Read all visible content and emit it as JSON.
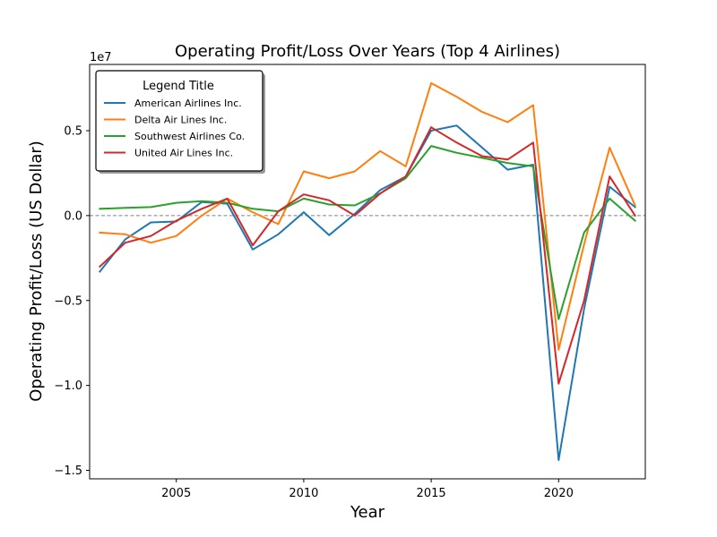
{
  "chart_data": {
    "type": "line",
    "title": "Operating Profit/Loss Over Years (Top 4 Airlines)",
    "xlabel": "Year",
    "ylabel": "Operating Profit/Loss (US Dollar)",
    "y_offset_label": "1e7",
    "xlim": [
      2001.6,
      2023.4
    ],
    "ylim": [
      -15500000,
      8900000
    ],
    "x_ticks": [
      2005,
      2010,
      2015,
      2020
    ],
    "x_tick_labels": [
      "2005",
      "2010",
      "2015",
      "2020"
    ],
    "y_ticks": [
      -15000000,
      -10000000,
      -5000000,
      0,
      5000000
    ],
    "y_tick_labels": [
      "−1.5",
      "−1.0",
      "−0.5",
      "0.0",
      "0.5"
    ],
    "zero_line": true,
    "grid": false,
    "legend": {
      "title": "Legend Title",
      "placement": "upper-left"
    },
    "x": [
      2002,
      2003,
      2004,
      2005,
      2006,
      2007,
      2008,
      2009,
      2010,
      2011,
      2012,
      2013,
      2014,
      2015,
      2016,
      2017,
      2018,
      2019,
      2020,
      2021,
      2022,
      2023
    ],
    "series": [
      {
        "name": "American Airlines Inc.",
        "color": "#1f77b4",
        "values": [
          -3300000,
          -1400000,
          -400000,
          -350000,
          800000,
          700000,
          -2000000,
          -1100000,
          200000,
          -1150000,
          100000,
          1500000,
          2300000,
          5000000,
          5300000,
          4000000,
          2700000,
          3000000,
          -14400000,
          -5500000,
          1700000,
          500000
        ]
      },
      {
        "name": "Delta Air Lines Inc.",
        "color": "#ff7f0e",
        "values": [
          -1000000,
          -1100000,
          -1600000,
          -1200000,
          0,
          1000000,
          200000,
          -500000,
          2600000,
          2200000,
          2600000,
          3800000,
          2900000,
          7800000,
          7000000,
          6100000,
          5500000,
          6500000,
          -7900000,
          -1700000,
          4000000,
          600000
        ]
      },
      {
        "name": "Southwest Airlines Co.",
        "color": "#2ca02c",
        "values": [
          400000,
          450000,
          500000,
          750000,
          850000,
          750000,
          400000,
          250000,
          1000000,
          650000,
          600000,
          1300000,
          2200000,
          4100000,
          3700000,
          3400000,
          3100000,
          2900000,
          -6100000,
          -1000000,
          1000000,
          -300000
        ]
      },
      {
        "name": "United Air Lines Inc.",
        "color": "#d62728",
        "values": [
          -3000000,
          -1600000,
          -1200000,
          -300000,
          400000,
          1000000,
          -1750000,
          250000,
          1250000,
          900000,
          0,
          1300000,
          2300000,
          5200000,
          4300000,
          3500000,
          3300000,
          4300000,
          -9900000,
          -5000000,
          2300000,
          0
        ]
      }
    ]
  }
}
